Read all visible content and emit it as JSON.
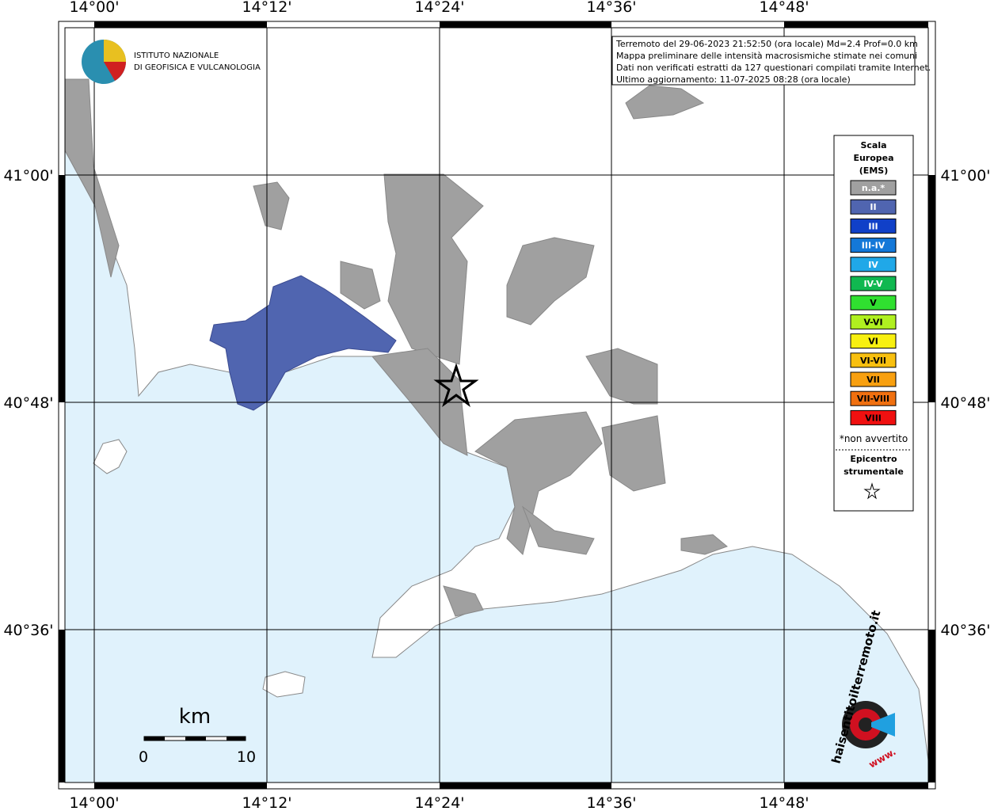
{
  "header": {
    "lines": [
      "Terremoto del 29-06-2023 21:52:50 (ora locale) Md=2.4 Prof=0.0 km",
      "Mappa preliminare delle intensità macrosismiche stimate nei comuni",
      "Dati non verificati estratti da 127 questionari compilati tramite Internet.",
      "Ultimo aggiornamento: 11-07-2025 08:28 (ora locale)"
    ]
  },
  "logo": {
    "line1": "ISTITUTO NAZIONALE",
    "line2": "DI GEOFISICA E VULCANOLOGIA"
  },
  "axes": {
    "x_labels": [
      "14°00'",
      "14°12'",
      "14°24'",
      "14°36'",
      "14°48'"
    ],
    "y_labels": [
      "41°00'",
      "40°48'",
      "40°36'"
    ]
  },
  "legend": {
    "title_lines": [
      "Scala",
      "Europea",
      "(EMS)"
    ],
    "items": [
      {
        "label": "n.a.*",
        "color": "#a0a0a0"
      },
      {
        "label": "II",
        "color": "#5065b0"
      },
      {
        "label": "III",
        "color": "#1040c8"
      },
      {
        "label": "III-IV",
        "color": "#1478d8"
      },
      {
        "label": "IV",
        "color": "#20a8e8"
      },
      {
        "label": "IV-V",
        "color": "#10b850"
      },
      {
        "label": "V",
        "color": "#30e030"
      },
      {
        "label": "V-VI",
        "color": "#b0f020"
      },
      {
        "label": "VI",
        "color": "#f8f010"
      },
      {
        "label": "VI-VII",
        "color": "#f8c010"
      },
      {
        "label": "VII",
        "color": "#f8a010"
      },
      {
        "label": "VII-VIII",
        "color": "#f07010"
      },
      {
        "label": "VIII",
        "color": "#f01010"
      }
    ],
    "note": "*non avvertito",
    "epicenter_lines": [
      "Epicentro",
      "strumentale"
    ]
  },
  "scale_bar": {
    "unit": "km",
    "labels": [
      "0",
      "10"
    ]
  },
  "watermark": {
    "main": "haisentitoilterremoto.it",
    "prefix": "www."
  }
}
